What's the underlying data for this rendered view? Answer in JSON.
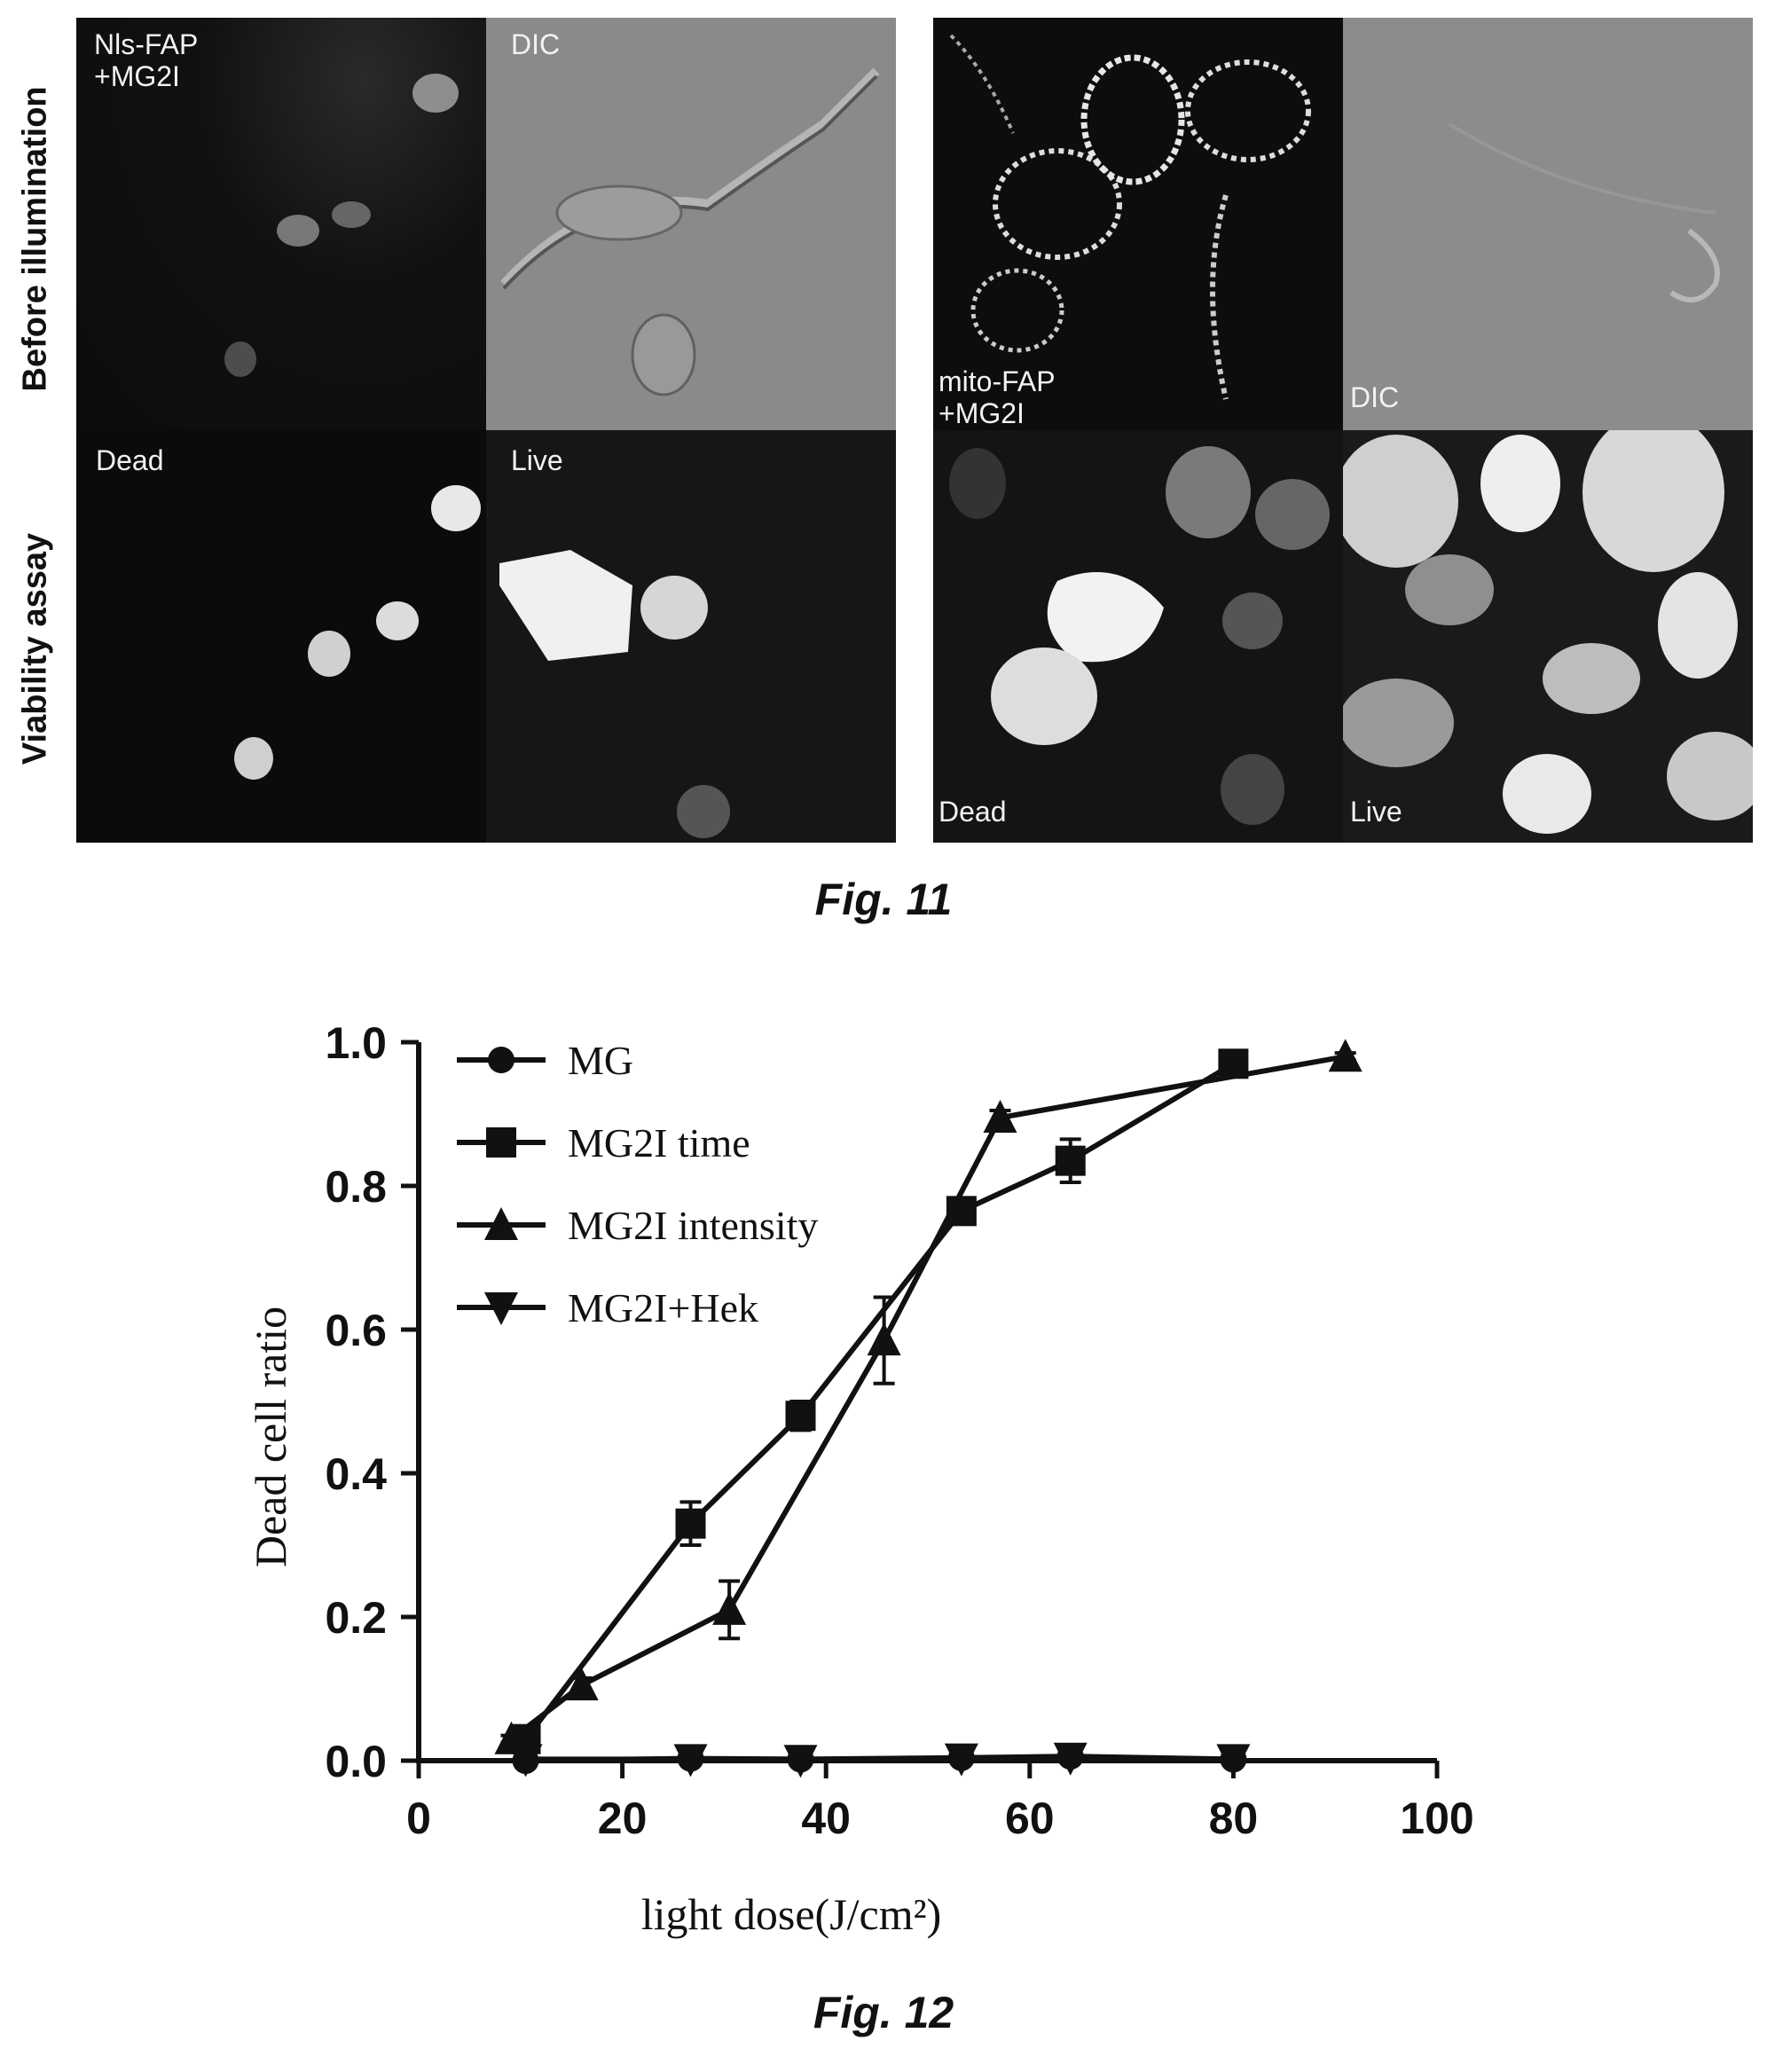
{
  "figure11": {
    "row_labels": [
      "Before illumination",
      "Viability assay"
    ],
    "panels": [
      {
        "id": "nls",
        "label": "Nls-FAP\n+MG2I"
      },
      {
        "id": "dic1",
        "label": "DIC"
      },
      {
        "id": "mito",
        "label": "mito-FAP\n+MG2I"
      },
      {
        "id": "dic2",
        "label": "DIC"
      },
      {
        "id": "dead1",
        "label": "Dead"
      },
      {
        "id": "live1",
        "label": "Live"
      },
      {
        "id": "dead2",
        "label": "Dead"
      },
      {
        "id": "live2",
        "label": "Live"
      }
    ],
    "caption": "Fig. 11"
  },
  "figure12": {
    "caption": "Fig. 12"
  },
  "chart_data": {
    "type": "line",
    "title": "",
    "xlabel": "light dose(J/cm²)",
    "ylabel": "Dead cell ratio",
    "xlim": [
      0,
      100
    ],
    "ylim": [
      0,
      1.0
    ],
    "xticks": [
      "0",
      "20",
      "40",
      "60",
      "80",
      "100"
    ],
    "yticks": [
      "0.0",
      "0.2",
      "0.4",
      "0.6",
      "0.8",
      "1.0"
    ],
    "grid": false,
    "legend_position": "top-left",
    "series": [
      {
        "name": "MG",
        "marker": "circle",
        "x": [
          10.5,
          26.7,
          37.5,
          53.3,
          64.0,
          80.0
        ],
        "y": [
          0.0,
          0.003,
          0.002,
          0.004,
          0.006,
          0.002
        ],
        "err": [
          0,
          0,
          0,
          0,
          0,
          0
        ]
      },
      {
        "name": "MG2I time",
        "marker": "square",
        "x": [
          10.5,
          26.7,
          37.5,
          53.3,
          64.0,
          80.0
        ],
        "y": [
          0.03,
          0.33,
          0.48,
          0.765,
          0.835,
          0.97
        ],
        "err": [
          0.01,
          0.03,
          0.02,
          0.01,
          0.03,
          0.01
        ]
      },
      {
        "name": "MG2I intensity",
        "marker": "triangle-up",
        "x": [
          9.1,
          16.0,
          30.5,
          45.7,
          57.1,
          91.0
        ],
        "y": [
          0.03,
          0.105,
          0.21,
          0.585,
          0.895,
          0.98
        ],
        "err": [
          0.005,
          0.01,
          0.04,
          0.06,
          0.01,
          0.005
        ]
      },
      {
        "name": "MG2I+Hek",
        "marker": "triangle-down",
        "x": [
          10.5,
          26.7,
          37.5,
          53.3,
          64.0,
          80.0
        ],
        "y": [
          0.002,
          0.002,
          0.001,
          0.003,
          0.004,
          0.002
        ],
        "err": [
          0,
          0,
          0,
          0,
          0,
          0
        ]
      }
    ]
  }
}
